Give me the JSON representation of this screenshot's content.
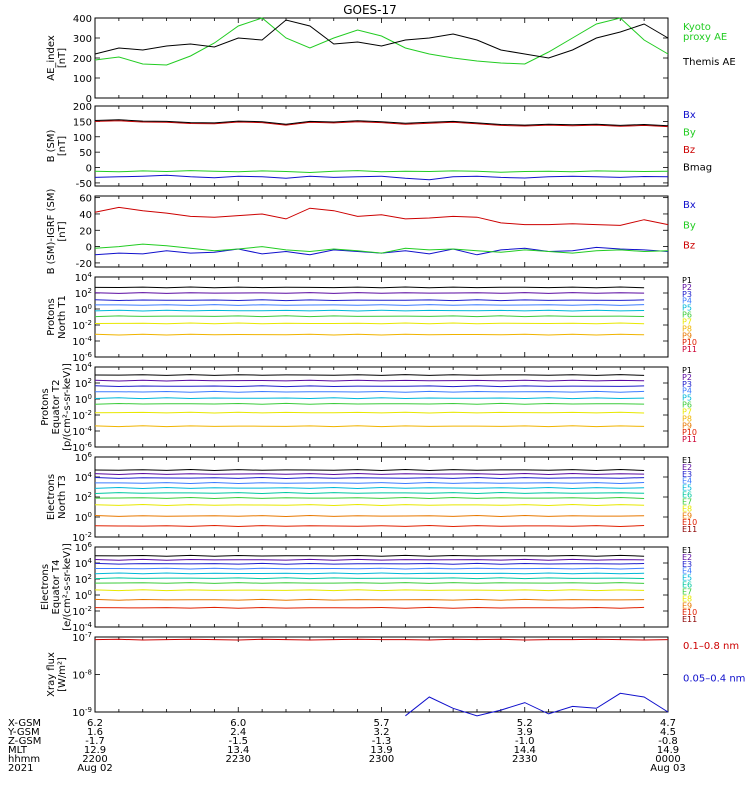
{
  "title": "GOES-17",
  "colors": {
    "black": "#000000",
    "green": "#22cc22",
    "blue": "#1010cc",
    "red": "#cc0000",
    "dkred": "#8b0000",
    "purple": "#5a0aa0",
    "navy": "#1e1ecc",
    "royal": "#3c7cff",
    "cyan": "#00b8d8",
    "teal": "#00c8a0",
    "lgreen": "#3ccc3c",
    "yellow": "#e8e800",
    "gold": "#f0b400",
    "orange": "#e87800",
    "redor": "#e02000",
    "crimson": "#cc0033"
  },
  "chart_data": [
    {
      "type": "line",
      "ylabel": [
        "AE_index",
        "[nT]"
      ],
      "ylim": [
        0,
        400
      ],
      "yticks": [
        "0",
        "100",
        "200",
        "300",
        "400"
      ],
      "x": [
        0,
        5,
        10,
        15,
        20,
        25,
        30,
        35,
        40,
        45,
        50,
        55,
        60,
        65,
        70,
        75,
        80,
        85,
        90,
        95,
        100,
        105,
        110,
        115,
        120
      ],
      "series": [
        {
          "name": "Kyoto proxy AE",
          "label_lines": [
            "Kyoto",
            "proxy AE"
          ],
          "color": "green",
          "values": [
            190,
            205,
            170,
            165,
            210,
            275,
            360,
            400,
            300,
            250,
            300,
            340,
            310,
            250,
            220,
            200,
            185,
            175,
            170,
            230,
            300,
            370,
            400,
            290,
            220
          ]
        },
        {
          "name": "Themis AE",
          "label_lines": [
            "Themis AE"
          ],
          "color": "black",
          "values": [
            220,
            250,
            240,
            260,
            270,
            255,
            300,
            290,
            390,
            360,
            270,
            280,
            260,
            290,
            300,
            320,
            290,
            240,
            220,
            200,
            240,
            300,
            330,
            370,
            300
          ]
        }
      ]
    },
    {
      "type": "line",
      "ylabel": [
        "B (SM)",
        "[nT]"
      ],
      "ylim": [
        -60,
        200
      ],
      "yticks": [
        "-50",
        "0",
        "50",
        "100",
        "150",
        "200"
      ],
      "ytick_values": [
        -50,
        0,
        50,
        100,
        150,
        200
      ],
      "x": [
        0,
        5,
        10,
        15,
        20,
        25,
        30,
        35,
        40,
        45,
        50,
        55,
        60,
        65,
        70,
        75,
        80,
        85,
        90,
        95,
        100,
        105,
        110,
        115,
        120
      ],
      "series": [
        {
          "name": "Bx",
          "color": "blue",
          "values": [
            -32,
            -30,
            -28,
            -25,
            -30,
            -33,
            -28,
            -30,
            -35,
            -28,
            -32,
            -30,
            -28,
            -35,
            -40,
            -30,
            -28,
            -32,
            -34,
            -30,
            -28,
            -30,
            -32,
            -29,
            -30
          ]
        },
        {
          "name": "By",
          "color": "green",
          "values": [
            -12,
            -14,
            -11,
            -13,
            -10,
            -12,
            -14,
            -11,
            -13,
            -16,
            -12,
            -10,
            -14,
            -12,
            -13,
            -11,
            -12,
            -15,
            -13,
            -12,
            -14,
            -11,
            -12,
            -13,
            -12
          ]
        },
        {
          "name": "Bz",
          "color": "red",
          "values": [
            150,
            152,
            148,
            147,
            143,
            142,
            148,
            146,
            138,
            147,
            145,
            149,
            146,
            141,
            144,
            147,
            142,
            137,
            135,
            138,
            136,
            138,
            134,
            137,
            133
          ]
        },
        {
          "name": "Bmag",
          "color": "black",
          "values": [
            153,
            155,
            151,
            150,
            146,
            145,
            151,
            149,
            141,
            150,
            148,
            152,
            149,
            144,
            147,
            150,
            145,
            140,
            138,
            141,
            139,
            141,
            137,
            140,
            136
          ]
        }
      ]
    },
    {
      "type": "line",
      "ylabel": [
        "B (SM)-IGRF (SM)",
        "[nT]"
      ],
      "ylim": [
        -25,
        62
      ],
      "yticks": [
        "-20",
        "0",
        "20",
        "40",
        "60"
      ],
      "ytick_values": [
        -20,
        0,
        20,
        40,
        60
      ],
      "x": [
        0,
        5,
        10,
        15,
        20,
        25,
        30,
        35,
        40,
        45,
        50,
        55,
        60,
        65,
        70,
        75,
        80,
        85,
        90,
        95,
        100,
        105,
        110,
        115,
        120
      ],
      "series": [
        {
          "name": "Bx",
          "color": "blue",
          "values": [
            -10,
            -8,
            -9,
            -5,
            -8,
            -7,
            -3,
            -9,
            -6,
            -10,
            -4,
            -6,
            -8,
            -5,
            -9,
            -3,
            -10,
            -4,
            -2,
            -6,
            -5,
            -1,
            -3,
            -4,
            -6
          ]
        },
        {
          "name": "By",
          "color": "green",
          "values": [
            -2,
            0,
            3,
            1,
            -2,
            -5,
            -3,
            0,
            -4,
            -6,
            -3,
            -5,
            -8,
            -2,
            -4,
            -3,
            -5,
            -7,
            -4,
            -6,
            -8,
            -5,
            -4,
            -6,
            -5
          ]
        },
        {
          "name": "Bz",
          "color": "red",
          "values": [
            42,
            48,
            44,
            41,
            37,
            36,
            38,
            40,
            34,
            47,
            44,
            37,
            39,
            34,
            35,
            37,
            36,
            29,
            27,
            27,
            28,
            27,
            26,
            33,
            27
          ]
        }
      ]
    },
    {
      "type": "line",
      "log": true,
      "ylabel": [
        "Protons",
        "North T1"
      ],
      "ylim_exp": [
        -6,
        4
      ],
      "yticks": [
        {
          "base": "10",
          "exp": "4"
        },
        {
          "base": "10",
          "exp": "2"
        },
        {
          "base": "10",
          "exp": "0"
        },
        {
          "base": "10",
          "exp": "-2"
        },
        {
          "base": "10",
          "exp": "-4"
        },
        {
          "base": "10",
          "exp": "-6"
        }
      ],
      "ytick_values": [
        4,
        2,
        0,
        -2,
        -4,
        -6
      ],
      "channels": [
        {
          "name": "P1",
          "color": "black",
          "log10": 2.7
        },
        {
          "name": "P2",
          "color": "purple",
          "log10": 2.0
        },
        {
          "name": "P3",
          "color": "navy",
          "log10": 1.1
        },
        {
          "name": "P4",
          "color": "royal",
          "log10": 0.5
        },
        {
          "name": "P5",
          "color": "cyan",
          "log10": -0.2
        },
        {
          "name": "P6",
          "color": "lgreen",
          "log10": -0.9
        },
        {
          "name": "P7",
          "color": "yellow",
          "log10": -1.8
        },
        {
          "name": "P8",
          "color": "gold",
          "log10": -3.2
        },
        {
          "name": "P9",
          "color": "orange",
          "log10": null
        },
        {
          "name": "P10",
          "color": "redor",
          "log10": null
        },
        {
          "name": "P11",
          "color": "crimson",
          "log10": null
        }
      ]
    },
    {
      "type": "line",
      "log": true,
      "ylabel": [
        "Protons",
        "Equator T2",
        "[p/(cm²-s-sr-keV)]"
      ],
      "ylim_exp": [
        -6,
        4
      ],
      "yticks": [
        {
          "base": "10",
          "exp": "4"
        },
        {
          "base": "10",
          "exp": "2"
        },
        {
          "base": "10",
          "exp": "0"
        },
        {
          "base": "10",
          "exp": "-2"
        },
        {
          "base": "10",
          "exp": "-4"
        },
        {
          "base": "10",
          "exp": "-6"
        }
      ],
      "ytick_values": [
        4,
        2,
        0,
        -2,
        -4,
        -6
      ],
      "channels": [
        {
          "name": "P1",
          "color": "black",
          "log10": 3.0
        },
        {
          "name": "P2",
          "color": "purple",
          "log10": 2.3
        },
        {
          "name": "P3",
          "color": "navy",
          "log10": 1.6
        },
        {
          "name": "P4",
          "color": "royal",
          "log10": 0.9
        },
        {
          "name": "P5",
          "color": "cyan",
          "log10": 0.1
        },
        {
          "name": "P6",
          "color": "lgreen",
          "log10": -0.6
        },
        {
          "name": "P7",
          "color": "yellow",
          "log10": -1.7
        },
        {
          "name": "P8",
          "color": "gold",
          "log10": -3.4
        },
        {
          "name": "P9",
          "color": "orange",
          "log10": null
        },
        {
          "name": "P10",
          "color": "redor",
          "log10": null
        },
        {
          "name": "P11",
          "color": "crimson",
          "log10": null
        }
      ]
    },
    {
      "type": "line",
      "log": true,
      "ylabel": [
        "Electrons",
        "North T3"
      ],
      "ylim_exp": [
        -2,
        6
      ],
      "yticks": [
        {
          "base": "10",
          "exp": "6"
        },
        {
          "base": "10",
          "exp": "4"
        },
        {
          "base": "10",
          "exp": "2"
        },
        {
          "base": "10",
          "exp": "0"
        },
        {
          "base": "10",
          "exp": "-2"
        }
      ],
      "ytick_values": [
        6,
        4,
        2,
        0,
        -2
      ],
      "channels": [
        {
          "name": "E1",
          "color": "black",
          "log10": 4.7
        },
        {
          "name": "E2",
          "color": "purple",
          "log10": 4.3
        },
        {
          "name": "E3",
          "color": "navy",
          "log10": 3.9
        },
        {
          "name": "E4",
          "color": "royal",
          "log10": 3.4
        },
        {
          "name": "E5",
          "color": "cyan",
          "log10": 2.9
        },
        {
          "name": "E6",
          "color": "teal",
          "log10": 2.4
        },
        {
          "name": "E7",
          "color": "lgreen",
          "log10": 1.9
        },
        {
          "name": "E8",
          "color": "yellow",
          "log10": 1.2
        },
        {
          "name": "E9",
          "color": "orange",
          "log10": 0.1
        },
        {
          "name": "E10",
          "color": "redor",
          "log10": -0.9
        },
        {
          "name": "E11",
          "color": "dkred",
          "log10": null
        }
      ]
    },
    {
      "type": "line",
      "log": true,
      "ylabel": [
        "Electrons",
        "Equator T4",
        "[e/(cm²-s-sr-keV)]"
      ],
      "ylim_exp": [
        -4,
        6
      ],
      "yticks": [
        {
          "base": "10",
          "exp": "6"
        },
        {
          "base": "10",
          "exp": "4"
        },
        {
          "base": "10",
          "exp": "2"
        },
        {
          "base": "10",
          "exp": "0"
        },
        {
          "base": "10",
          "exp": "-2"
        },
        {
          "base": "10",
          "exp": "-4"
        }
      ],
      "ytick_values": [
        6,
        4,
        2,
        0,
        -2,
        -4
      ],
      "channels": [
        {
          "name": "E1",
          "color": "black",
          "log10": 4.9
        },
        {
          "name": "E2",
          "color": "purple",
          "log10": 4.4
        },
        {
          "name": "E3",
          "color": "navy",
          "log10": 3.9
        },
        {
          "name": "E4",
          "color": "royal",
          "log10": 3.3
        },
        {
          "name": "E5",
          "color": "cyan",
          "log10": 2.7
        },
        {
          "name": "E6",
          "color": "teal",
          "log10": 2.1
        },
        {
          "name": "E7",
          "color": "lgreen",
          "log10": 1.5
        },
        {
          "name": "E8",
          "color": "yellow",
          "log10": 0.6
        },
        {
          "name": "E9",
          "color": "orange",
          "log10": -0.6
        },
        {
          "name": "E10",
          "color": "redor",
          "log10": -1.6
        },
        {
          "name": "E11",
          "color": "dkred",
          "log10": null
        }
      ]
    },
    {
      "type": "line",
      "log": true,
      "ylabel": [
        "Xray flux",
        "[W/m²]"
      ],
      "ylim_exp": [
        -9,
        -7
      ],
      "yticks": [
        {
          "base": "10",
          "exp": "-7"
        },
        {
          "base": "10",
          "exp": "-8"
        },
        {
          "base": "10",
          "exp": "-9"
        }
      ],
      "ytick_values": [
        -7,
        -8,
        -9
      ],
      "x": [
        0,
        5,
        10,
        15,
        20,
        25,
        30,
        35,
        40,
        45,
        50,
        55,
        60,
        65,
        70,
        75,
        80,
        85,
        90,
        95,
        100,
        105,
        110,
        115,
        120
      ],
      "series": [
        {
          "name": "0.1-0.8 nm",
          "color": "red",
          "label": "0.1–0.8 nm",
          "log10": [
            -7.07,
            -7.06,
            -7.08,
            -7.07,
            -7.06,
            -7.07,
            -7.08,
            -7.06,
            -7.07,
            -7.08,
            -7.07,
            -7.06,
            -7.07,
            -7.07,
            -7.08,
            -7.06,
            -7.07,
            -7.06,
            -7.08,
            -7.07,
            -7.07,
            -7.06,
            -7.07,
            -7.08,
            -7.07
          ]
        },
        {
          "name": "0.05-0.4 nm",
          "color": "blue",
          "label": "0.05–0.4 nm",
          "log10": [
            null,
            null,
            null,
            null,
            null,
            null,
            null,
            null,
            null,
            null,
            null,
            null,
            null,
            -9.1,
            -8.6,
            -8.9,
            -9.1,
            -8.95,
            -8.75,
            -9.05,
            -8.85,
            -8.9,
            -8.5,
            -8.6,
            -9.0
          ]
        }
      ]
    }
  ],
  "x_axis": {
    "row_labels": [
      "X-GSM",
      "Y-GSM",
      "Z-GSM",
      "MLT",
      "hhmm",
      "2021"
    ],
    "columns": [
      {
        "values": [
          "6.2",
          "1.6",
          "-1.7",
          "12.9",
          "2200",
          "Aug 02"
        ]
      },
      {
        "values": [
          "6.0",
          "2.4",
          "-1.5",
          "13.4",
          "2230",
          ""
        ]
      },
      {
        "values": [
          "5.7",
          "3.2",
          "-1.3",
          "13.9",
          "2300",
          ""
        ]
      },
      {
        "values": [
          "5.2",
          "3.9",
          "-1.0",
          "14.4",
          "2330",
          ""
        ]
      },
      {
        "values": [
          "4.7",
          "4.5",
          "-0.8",
          "14.9",
          "0000",
          "Aug 03"
        ]
      }
    ]
  }
}
